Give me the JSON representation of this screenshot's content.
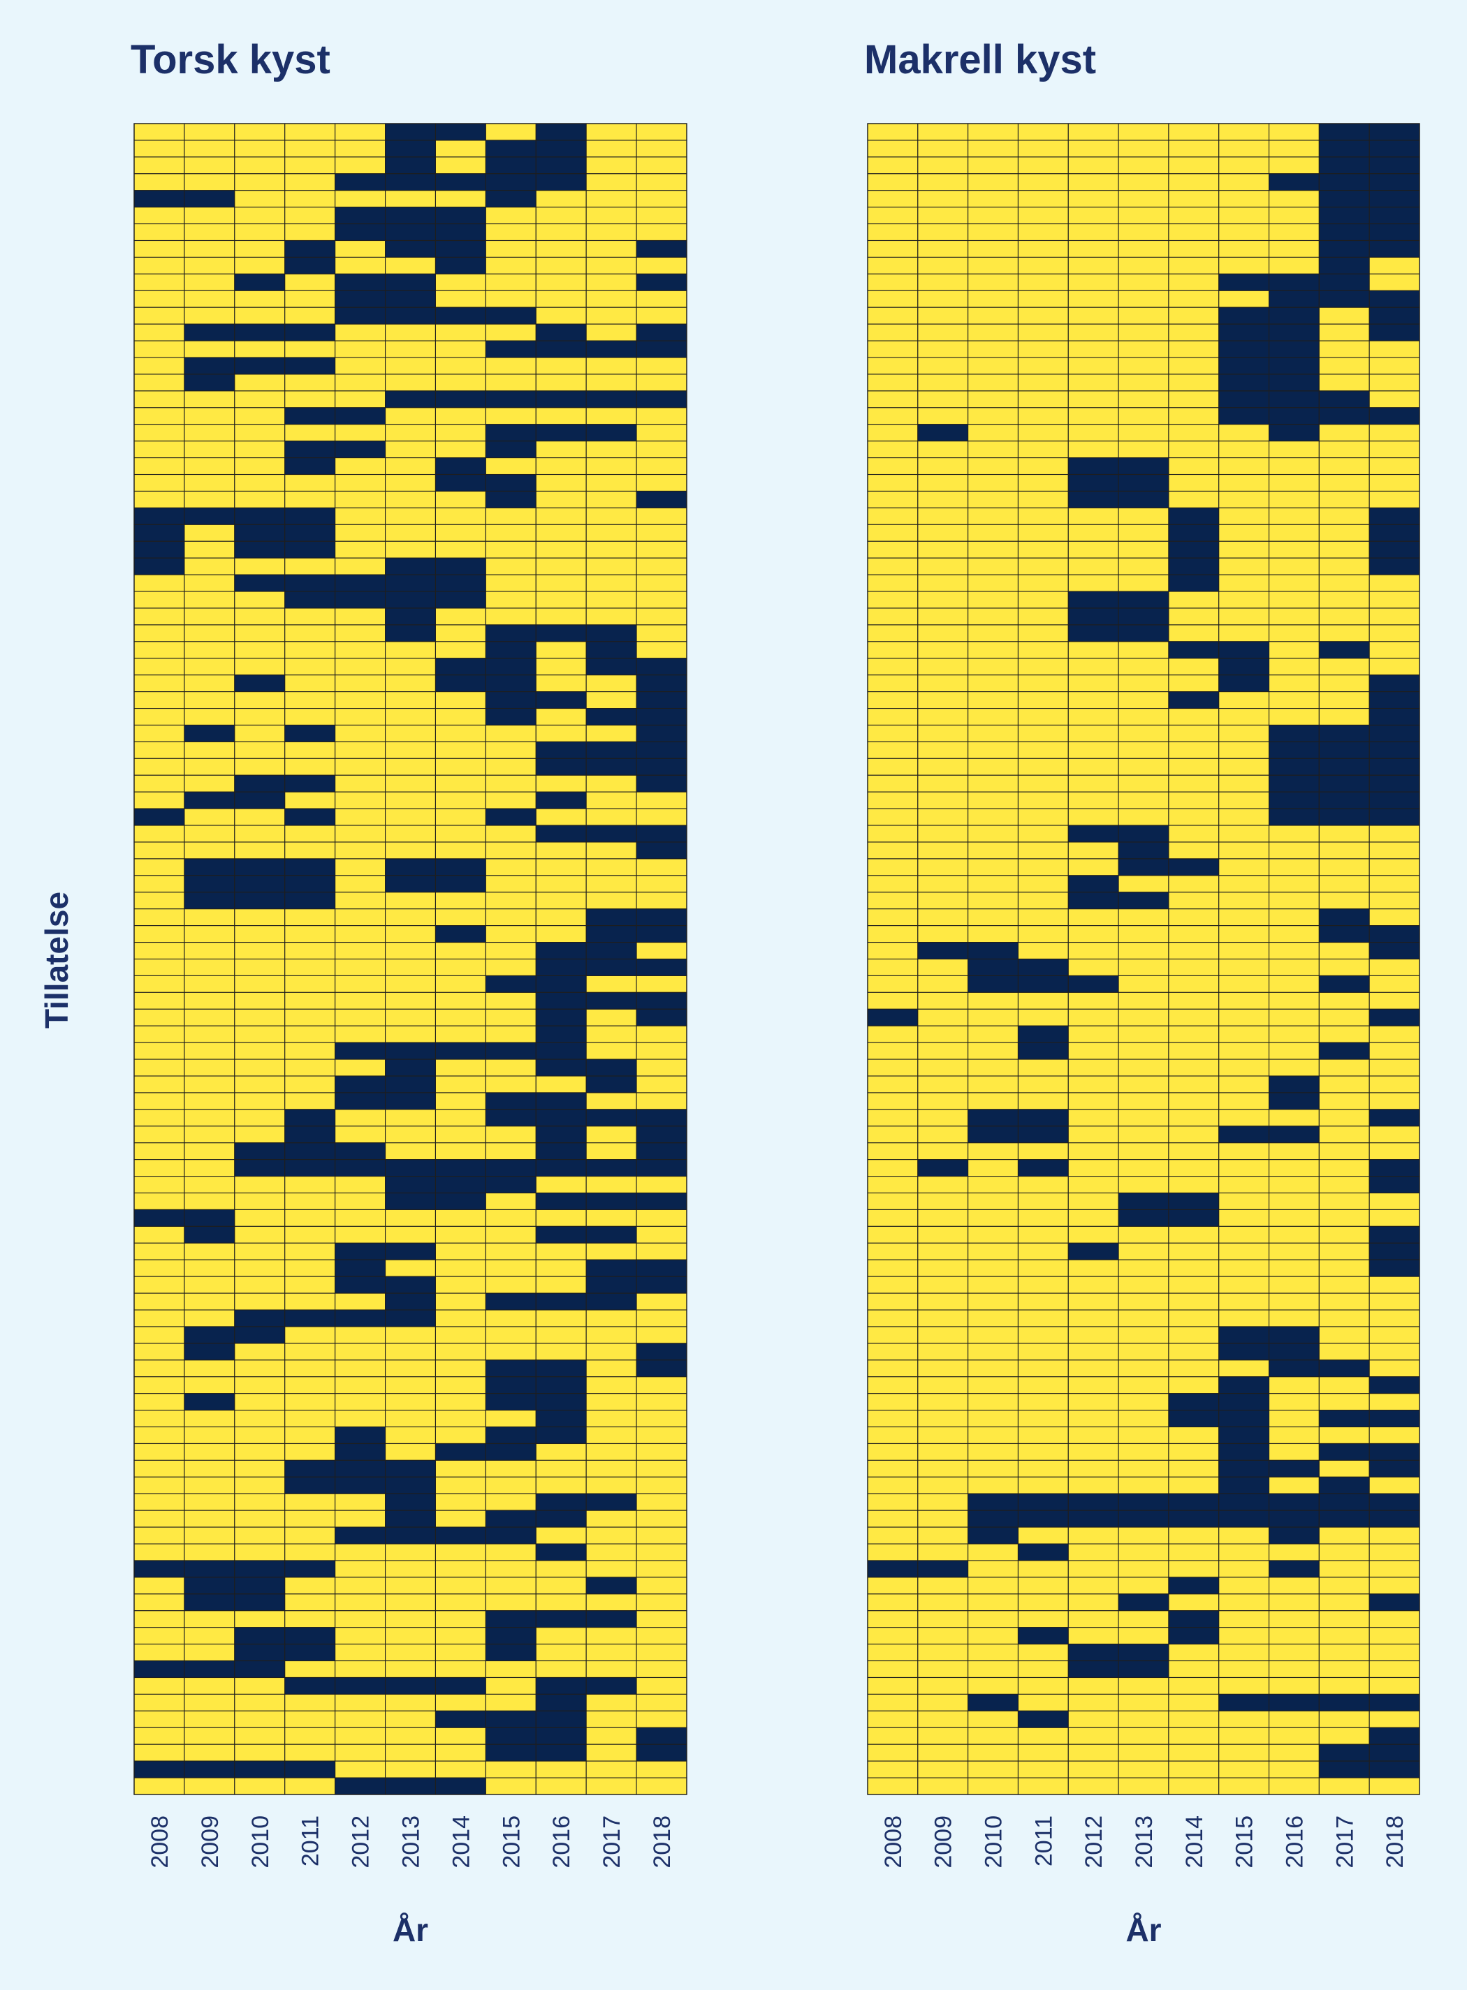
{
  "colors": {
    "background": "#e9f6fc",
    "on": "#08234e",
    "off": "#ffe944",
    "text": "#1c3068",
    "gridline": "#1e1e1e"
  },
  "chart_data": [
    {
      "type": "heatmap",
      "title": "Torsk kyst",
      "xlabel": "År",
      "ylabel": "Tillatelse",
      "x": [
        "2008",
        "2009",
        "2010",
        "2011",
        "2012",
        "2013",
        "2014",
        "2015",
        "2016",
        "2017",
        "2018"
      ],
      "rows": [
        "00000110100",
        "00000101100",
        "00000101100",
        "00001111100",
        "11000001000",
        "00001110000",
        "00001110000",
        "00010110001",
        "00010010000",
        "00101100001",
        "00001100000",
        "00001111000",
        "01110000101",
        "00000001111",
        "01110000000",
        "01000000000",
        "00000111111",
        "00011000000",
        "00000001110",
        "00011001000",
        "00010010000",
        "00000011000",
        "00000001001",
        "11110000000",
        "10110000000",
        "10110000000",
        "10000110000",
        "00111110000",
        "00011110000",
        "00000100000",
        "00000101110",
        "00000001010",
        "00000011011",
        "00100011001",
        "00000001101",
        "00000001011",
        "01010000001",
        "00000000111",
        "00000000111",
        "00110000001",
        "01100000100",
        "10010001000",
        "00000000111",
        "00000000001",
        "01110110000",
        "01110110000",
        "01110000000",
        "00000000011",
        "00000010011",
        "00000000110",
        "00000000111",
        "00000001100",
        "00000000111",
        "00000000101",
        "00000000100",
        "00001111100",
        "00000100110",
        "00001100010",
        "00001101100",
        "00010001111",
        "00010000101",
        "00111000101",
        "00111111111",
        "00000111000",
        "00000110111",
        "11000000000",
        "01000000110",
        "00001100000",
        "00001000011",
        "00001100011",
        "00000101110",
        "00111100000",
        "01100000000",
        "01000000001",
        "00000001101",
        "00000001100",
        "01000001100",
        "00000000100",
        "00001001100",
        "00001011000",
        "00011100000",
        "00011100000",
        "00000100110",
        "00000101100",
        "00001111000",
        "00000000100",
        "11110000000",
        "01100000010",
        "01100000000",
        "00000001110",
        "00110001000",
        "00110001000",
        "11100000000",
        "00011110110",
        "00000000100",
        "00000011100",
        "00000001101",
        "00000001101",
        "11110000000",
        "00001110000"
      ]
    },
    {
      "type": "heatmap",
      "title": "Makrell kyst",
      "xlabel": "År",
      "ylabel": "",
      "x": [
        "2008",
        "2009",
        "2010",
        "2011",
        "2012",
        "2013",
        "2014",
        "2015",
        "2016",
        "2017",
        "2018"
      ],
      "rows": [
        "00000000011",
        "00000000011",
        "00000000011",
        "00000000111",
        "00000000011",
        "00000000011",
        "00000000011",
        "00000000011",
        "00000000010",
        "00000001110",
        "00000000111",
        "00000001101",
        "00000001101",
        "00000001100",
        "00000001100",
        "00000001100",
        "00000001110",
        "00000001111",
        "01000000100",
        "00000000000",
        "00001100000",
        "00001100000",
        "00001100000",
        "00000010001",
        "00000010001",
        "00000010001",
        "00000010001",
        "00000010000",
        "00001100000",
        "00001100000",
        "00001100000",
        "00000011010",
        "00000001000",
        "00000001001",
        "00000010001",
        "00000000001",
        "00000000111",
        "00000000111",
        "00000000111",
        "00000000111",
        "00000000111",
        "00000000111",
        "00001100000",
        "00000100000",
        "00000110000",
        "00001000000",
        "00001100000",
        "00000000010",
        "00000000011",
        "01100000001",
        "00110000000",
        "00111000010",
        "00000000000",
        "10000000001",
        "00010000000",
        "00010000010",
        "00000000000",
        "00000000100",
        "00000000100",
        "00110000001",
        "00110001100",
        "00000000000",
        "01010000001",
        "00000000001",
        "00000110000",
        "00000110000",
        "00000000001",
        "00001000001",
        "00000000001",
        "00000000000",
        "00000000000",
        "00000000000",
        "00000001100",
        "00000001100",
        "00000000110",
        "00000001001",
        "00000011000",
        "00000011011",
        "00000001000",
        "00000001011",
        "00000001101",
        "00000001010",
        "00111111111",
        "00111111111",
        "00100000100",
        "00010000000",
        "11000000100",
        "00000010000",
        "00000100001",
        "00000010000",
        "00010010000",
        "00001100000",
        "00001100000",
        "00000000000",
        "00100001111",
        "00010000000",
        "00000000001",
        "00000000011",
        "00000000011",
        "00000000000"
      ]
    }
  ]
}
